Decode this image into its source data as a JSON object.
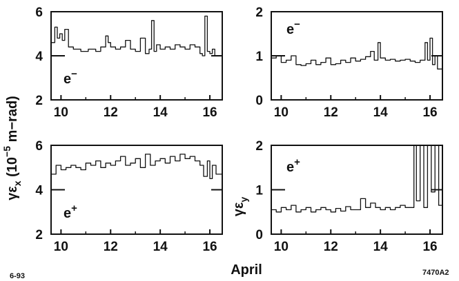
{
  "chart_data": [
    {
      "type": "line",
      "panel": "top-left",
      "particle": "e−",
      "ylim": [
        2,
        6
      ],
      "yticks": [
        "2",
        "4",
        "6"
      ],
      "xlim": [
        9.6,
        16.5
      ],
      "xticks": [
        "10",
        "12",
        "14",
        "16"
      ],
      "reference_y": 4,
      "x": [
        9.6,
        9.75,
        9.85,
        9.95,
        10.05,
        10.15,
        10.3,
        10.5,
        10.8,
        11.1,
        11.4,
        11.6,
        11.8,
        11.9,
        12.0,
        12.2,
        12.4,
        12.6,
        12.8,
        13.0,
        13.2,
        13.4,
        13.55,
        13.65,
        13.75,
        13.85,
        14.0,
        14.2,
        14.4,
        14.6,
        14.8,
        15.0,
        15.2,
        15.4,
        15.6,
        15.7,
        15.8,
        15.9,
        16.0,
        16.1,
        16.2,
        16.3,
        16.5
      ],
      "y": [
        4.6,
        5.3,
        4.8,
        5.0,
        4.7,
        5.2,
        4.4,
        4.3,
        4.2,
        4.3,
        4.2,
        4.4,
        4.9,
        4.6,
        4.4,
        4.3,
        4.4,
        4.7,
        4.3,
        4.2,
        4.8,
        4.1,
        4.3,
        5.6,
        4.2,
        4.5,
        4.3,
        4.4,
        4.3,
        4.5,
        4.4,
        4.3,
        4.5,
        4.4,
        4.1,
        4.0,
        5.8,
        4.2,
        4.1,
        4.3,
        4.0,
        4.0,
        4.0
      ]
    },
    {
      "type": "line",
      "panel": "top-right",
      "particle": "e−",
      "ylim": [
        0,
        2
      ],
      "yticks": [
        "0",
        "1",
        "2"
      ],
      "xlim": [
        9.6,
        16.5
      ],
      "xticks": [
        "10",
        "12",
        "14",
        "16"
      ],
      "reference_y": 1,
      "x": [
        9.6,
        9.8,
        10.0,
        10.2,
        10.4,
        10.6,
        10.8,
        11.0,
        11.2,
        11.4,
        11.6,
        11.8,
        12.0,
        12.2,
        12.4,
        12.6,
        12.8,
        13.0,
        13.2,
        13.4,
        13.6,
        13.75,
        13.9,
        14.0,
        14.2,
        14.4,
        14.6,
        14.8,
        15.0,
        15.2,
        15.4,
        15.6,
        15.8,
        15.9,
        16.0,
        16.1,
        16.2,
        16.3,
        16.5
      ],
      "y": [
        0.95,
        1.0,
        0.85,
        0.9,
        1.0,
        0.8,
        0.78,
        0.82,
        0.9,
        0.8,
        0.85,
        0.95,
        0.8,
        0.82,
        0.9,
        0.85,
        0.95,
        0.88,
        0.92,
        0.98,
        1.1,
        0.9,
        1.3,
        0.95,
        0.9,
        0.92,
        0.88,
        0.9,
        0.92,
        0.88,
        0.85,
        0.9,
        1.3,
        0.9,
        1.4,
        0.8,
        1.0,
        0.7,
        0.68
      ]
    },
    {
      "type": "line",
      "panel": "bottom-left",
      "particle": "e+",
      "ylim": [
        2,
        6
      ],
      "yticks": [
        "2",
        "4",
        "6"
      ],
      "xlim": [
        9.6,
        16.5
      ],
      "xticks": [
        "10",
        "12",
        "14",
        "16"
      ],
      "reference_y": 4,
      "x": [
        9.6,
        9.8,
        10.0,
        10.2,
        10.4,
        10.6,
        10.8,
        11.0,
        11.2,
        11.4,
        11.6,
        11.8,
        12.0,
        12.2,
        12.4,
        12.6,
        12.8,
        13.0,
        13.2,
        13.4,
        13.6,
        13.8,
        14.0,
        14.2,
        14.4,
        14.6,
        14.8,
        15.0,
        15.2,
        15.4,
        15.6,
        15.75,
        15.9,
        16.0,
        16.1,
        16.25,
        16.5
      ],
      "y": [
        4.7,
        5.1,
        4.9,
        5.0,
        5.1,
        5.0,
        4.9,
        5.2,
        5.1,
        5.3,
        5.0,
        5.2,
        5.1,
        5.3,
        5.5,
        5.1,
        5.2,
        5.4,
        5.0,
        5.6,
        5.1,
        5.3,
        5.4,
        5.2,
        5.5,
        5.3,
        5.6,
        5.4,
        5.5,
        5.3,
        5.1,
        4.6,
        5.3,
        4.5,
        5.1,
        4.7,
        4.7
      ]
    },
    {
      "type": "line",
      "panel": "bottom-right",
      "particle": "e+",
      "ylim": [
        0,
        2
      ],
      "yticks": [
        "0",
        "1",
        "2"
      ],
      "xlim": [
        9.6,
        16.5
      ],
      "xticks": [
        "10",
        "12",
        "14",
        "16"
      ],
      "reference_y": 1,
      "x": [
        9.6,
        9.8,
        10.0,
        10.2,
        10.4,
        10.6,
        10.8,
        11.0,
        11.2,
        11.4,
        11.6,
        11.8,
        12.0,
        12.2,
        12.4,
        12.6,
        12.8,
        13.0,
        13.2,
        13.4,
        13.6,
        13.8,
        14.0,
        14.2,
        14.4,
        14.6,
        14.8,
        15.0,
        15.2,
        15.35,
        15.45,
        15.6,
        15.75,
        15.9,
        16.05,
        16.2,
        16.35,
        16.5
      ],
      "y": [
        0.55,
        0.5,
        0.6,
        0.55,
        0.65,
        0.5,
        0.55,
        0.6,
        0.5,
        0.55,
        0.6,
        0.55,
        0.5,
        0.58,
        0.52,
        0.62,
        0.55,
        0.55,
        0.8,
        0.6,
        0.7,
        0.6,
        0.55,
        0.6,
        0.55,
        0.6,
        0.65,
        0.6,
        0.6,
        2.0,
        0.75,
        2.0,
        0.6,
        2.0,
        0.95,
        2.0,
        0.65,
        0.62
      ]
    }
  ],
  "ylabel_left": "γεx (10−5 m−rad)",
  "ylabel_left_parts": {
    "gamma_eps": "γε",
    "sub": "x",
    "paren_open": " (10",
    "exp": "−5",
    "unit": " m−rad)"
  },
  "ylabel_right_parts": {
    "gamma_eps": "γε",
    "sub": "y"
  },
  "xlabel": "April",
  "corner_left": "6-93",
  "corner_right": "7470A2"
}
